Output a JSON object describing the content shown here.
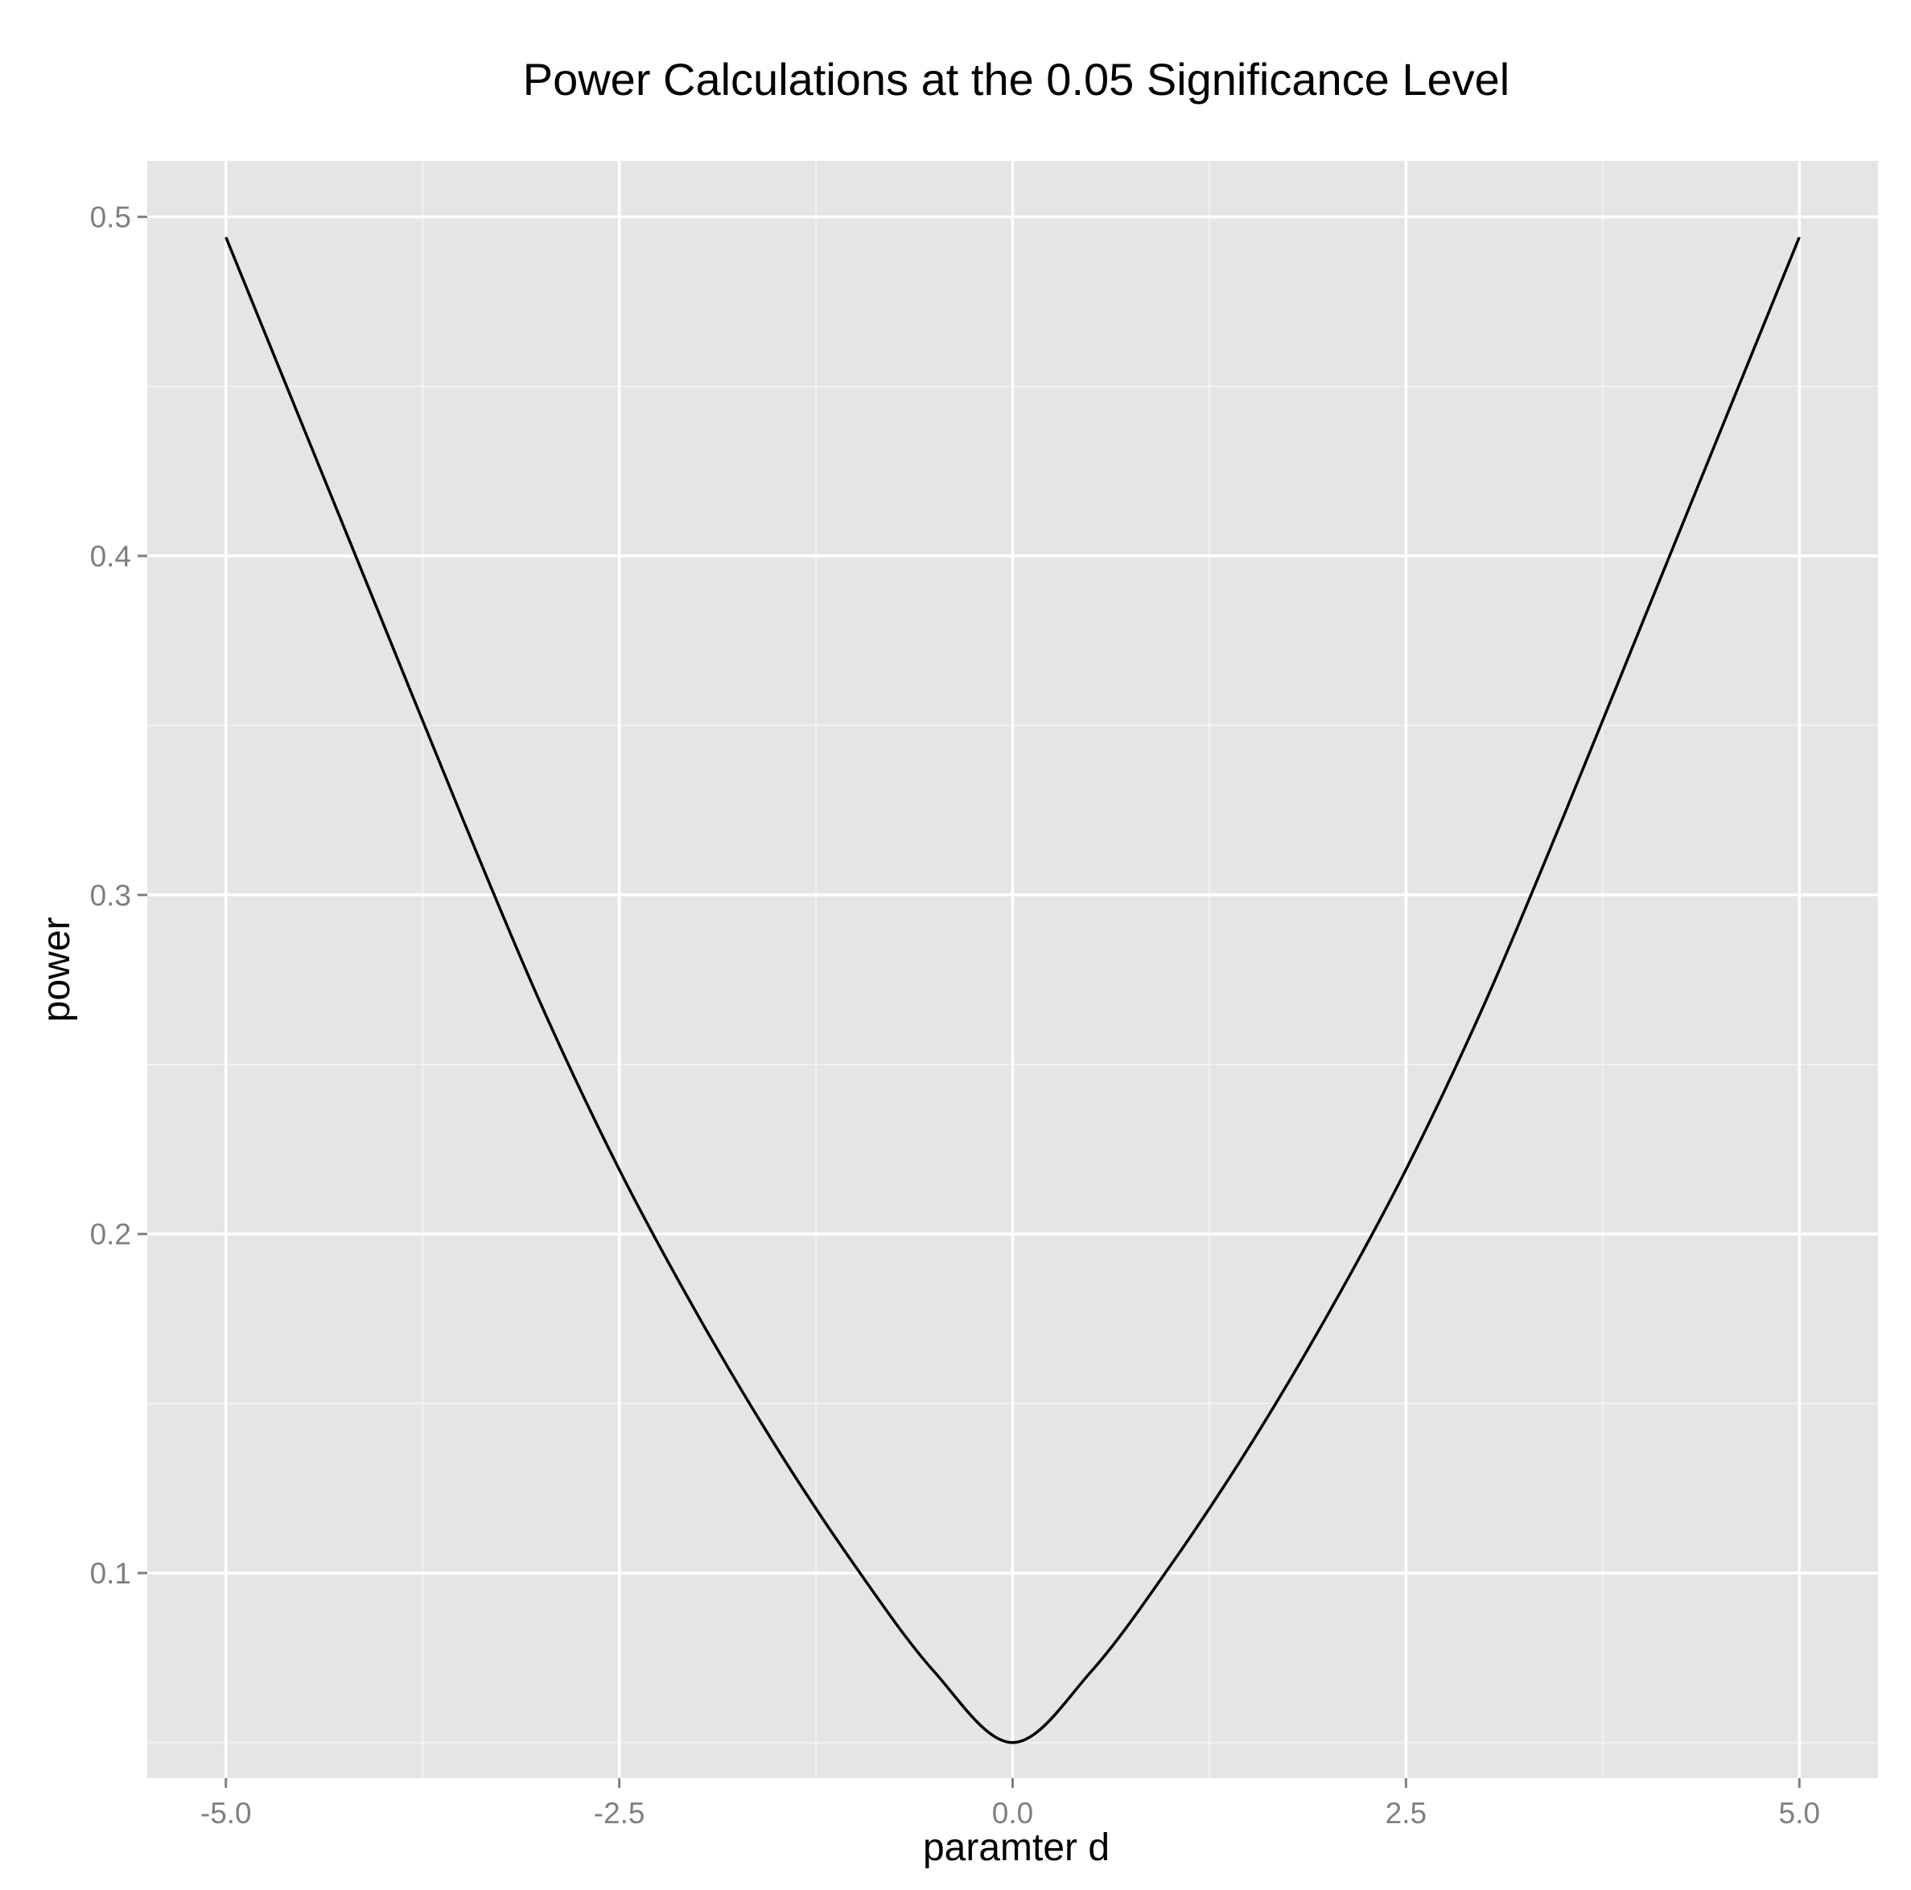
{
  "chart_data": {
    "type": "line",
    "title": "Power Calculations at the 0.05 Significance Level",
    "xlabel": "paramter d",
    "ylabel": "power",
    "xlim": [
      -5.5,
      5.5
    ],
    "ylim": [
      0.0395,
      0.5165
    ],
    "x_ticks": [
      -5.0,
      -2.5,
      0.0,
      2.5,
      5.0
    ],
    "x_tick_labels": [
      "-5.0",
      "-2.5",
      "0.0",
      "2.5",
      "5.0"
    ],
    "y_ticks": [
      0.1,
      0.2,
      0.3,
      0.4,
      0.5
    ],
    "y_tick_labels": [
      "0.1",
      "0.2",
      "0.3",
      "0.4",
      "0.5"
    ],
    "grid": true,
    "panel_background": "#e5e5e5",
    "grid_color": "#ffffff",
    "line_color": "#000000",
    "series": [
      {
        "x": [
          -5.0,
          -4.5,
          -4.0,
          -3.5,
          -3.0,
          -2.5,
          -2.0,
          -1.5,
          -1.0,
          -0.5,
          0.0,
          0.5,
          1.0,
          1.5,
          2.0,
          2.5,
          3.0,
          3.5,
          4.0,
          4.5,
          5.0
        ],
        "values": [
          0.494,
          0.437,
          0.38,
          0.323,
          0.268,
          0.219,
          0.176,
          0.137,
          0.102,
          0.071,
          0.05,
          0.071,
          0.102,
          0.137,
          0.176,
          0.219,
          0.268,
          0.323,
          0.38,
          0.437,
          0.494
        ]
      }
    ]
  }
}
